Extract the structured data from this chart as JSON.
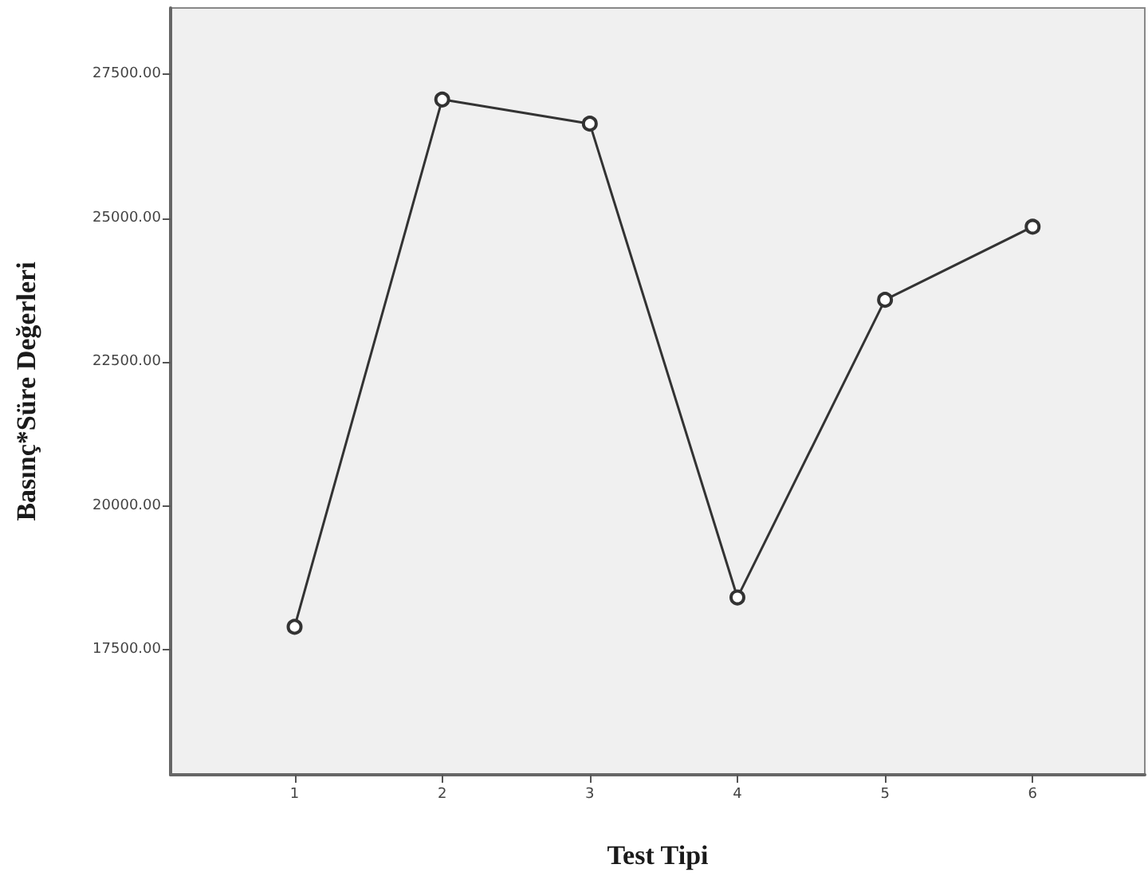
{
  "chart_data": {
    "type": "line",
    "xlabel": "Test Tipi",
    "ylabel": "Basınç*Süre Değerleri",
    "x": [
      1,
      2,
      3,
      4,
      5,
      6
    ],
    "series": [
      {
        "color": "#333333",
        "values": [
          17900,
          27060,
          26640,
          18410,
          23580,
          24850
        ]
      }
    ],
    "xlim": [
      0.16,
      6.76
    ],
    "xticks": [
      1,
      2,
      3,
      4,
      5,
      6
    ],
    "ylim": [
      15330,
      28650
    ],
    "yticks": [
      {
        "value": 17500,
        "label": "17500.00"
      },
      {
        "value": 20000,
        "label": "20000.00"
      },
      {
        "value": 22500,
        "label": "22500.00"
      },
      {
        "value": 25000,
        "label": "25000.00"
      },
      {
        "value": 27500,
        "label": "27500.00"
      }
    ],
    "grid": false,
    "marker": "circle",
    "line_style": "solid"
  }
}
